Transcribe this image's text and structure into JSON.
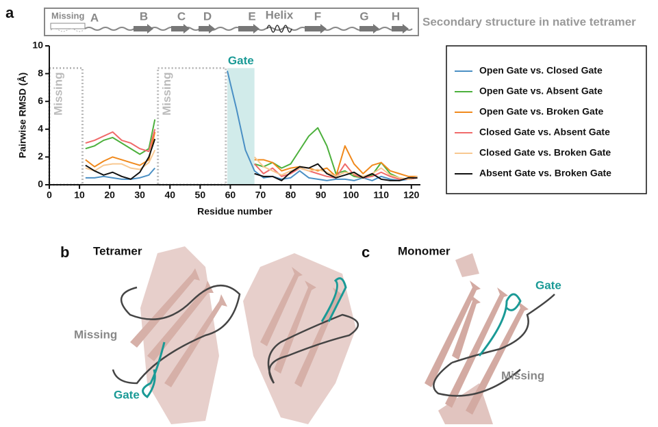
{
  "panel_labels": [
    "a",
    "b",
    "c"
  ],
  "structure_bar": {
    "caption": "Secondary structure in native tetramer",
    "missing": "Missing",
    "elements": [
      "A",
      "B",
      "C",
      "D",
      "E",
      "Helix",
      "F",
      "G",
      "H"
    ]
  },
  "chart_data": {
    "type": "line",
    "x_label": "Residue number",
    "y_label": "Pairwise RMSD (Å)",
    "xlim": [
      0,
      123
    ],
    "xticks": [
      0,
      10,
      20,
      30,
      40,
      50,
      60,
      70,
      80,
      90,
      100,
      110,
      120
    ],
    "ylim": [
      0,
      10
    ],
    "yticks": [
      0,
      2,
      4,
      6,
      8,
      10
    ],
    "regions": [
      {
        "label": "Missing",
        "start": 0,
        "end": 11,
        "top": 8.4,
        "color": "#bbbbbb",
        "shaded": false
      },
      {
        "label": "Missing",
        "start": 36,
        "end": 58.5,
        "top": 8.4,
        "color": "#bbbbbb",
        "shaded": false
      },
      {
        "label": "Gate",
        "start": 59,
        "end": 68,
        "top": 8.4,
        "color": "#1a9a96",
        "shaded": true
      }
    ],
    "x": [
      12,
      15,
      18,
      21,
      24,
      27,
      30,
      33,
      35,
      47,
      59,
      62,
      65,
      68,
      71,
      74,
      77,
      80,
      83,
      86,
      89,
      92,
      95,
      98,
      101,
      104,
      107,
      110,
      113,
      116,
      119,
      122
    ],
    "series": [
      {
        "name": "Open Gate vs. Closed Gate",
        "color": "#4a8fc4",
        "values": [
          0.5,
          0.5,
          0.6,
          0.5,
          0.4,
          0.4,
          0.5,
          0.7,
          1.2,
          null,
          8.2,
          5.5,
          2.5,
          1.0,
          0.5,
          0.6,
          0.4,
          0.5,
          1.0,
          0.5,
          0.4,
          0.3,
          0.4,
          0.4,
          0.3,
          0.5,
          0.3,
          0.6,
          0.4,
          0.3,
          0.4,
          0.5
        ]
      },
      {
        "name": "Open Gate vs. Absent Gate",
        "color": "#4cb03c",
        "values": [
          2.6,
          2.8,
          3.2,
          3.4,
          3.0,
          2.6,
          2.2,
          2.6,
          4.7,
          null,
          null,
          null,
          null,
          1.5,
          1.3,
          1.6,
          1.2,
          1.5,
          2.5,
          3.5,
          4.1,
          2.8,
          0.8,
          1.0,
          0.6,
          0.5,
          0.7,
          1.6,
          0.8,
          0.5,
          0.4,
          0.5
        ]
      },
      {
        "name": "Open Gate vs. Broken Gate",
        "color": "#f0891c",
        "values": [
          1.8,
          1.3,
          1.7,
          2.0,
          1.8,
          1.6,
          1.4,
          1.8,
          3.8,
          null,
          null,
          null,
          null,
          1.8,
          1.8,
          1.6,
          1.0,
          1.2,
          1.3,
          1.2,
          1.0,
          1.2,
          0.6,
          2.8,
          1.5,
          0.8,
          1.4,
          1.6,
          1.0,
          0.8,
          0.6,
          0.6
        ]
      },
      {
        "name": "Closed Gate vs. Absent Gate",
        "color": "#f06a6a",
        "values": [
          3.0,
          3.2,
          3.5,
          3.8,
          3.2,
          3.0,
          2.6,
          2.4,
          4.0,
          null,
          null,
          null,
          null,
          1.5,
          0.8,
          1.2,
          0.6,
          0.8,
          1.2,
          1.0,
          0.8,
          0.6,
          0.5,
          1.5,
          0.7,
          0.5,
          0.6,
          0.9,
          0.6,
          0.4,
          0.4,
          0.5
        ]
      },
      {
        "name": "Closed Gate vs. Broken Gate",
        "color": "#f8c890",
        "values": [
          1.2,
          1.0,
          1.4,
          1.5,
          1.5,
          1.2,
          1.1,
          1.6,
          2.5,
          null,
          null,
          null,
          null,
          2.0,
          1.3,
          1.0,
          0.7,
          1.0,
          1.2,
          1.0,
          1.1,
          0.9,
          0.6,
          0.9,
          0.8,
          0.6,
          0.8,
          1.2,
          0.7,
          0.5,
          0.4,
          0.6
        ]
      },
      {
        "name": "Absent Gate vs. Broken Gate",
        "color": "#111111",
        "values": [
          1.4,
          1.0,
          0.7,
          0.9,
          0.6,
          0.4,
          0.9,
          2.0,
          3.3,
          null,
          null,
          null,
          null,
          0.8,
          0.6,
          0.6,
          0.3,
          0.9,
          1.3,
          1.2,
          1.5,
          0.8,
          0.5,
          0.7,
          0.9,
          0.5,
          0.8,
          0.4,
          0.3,
          0.3,
          0.5,
          0.5
        ]
      }
    ]
  },
  "tetramer": {
    "title": "Tetramer",
    "missing": "Missing",
    "gate": "Gate"
  },
  "monomer": {
    "title": "Monomer",
    "gate": "Gate",
    "missing": "Missing"
  }
}
